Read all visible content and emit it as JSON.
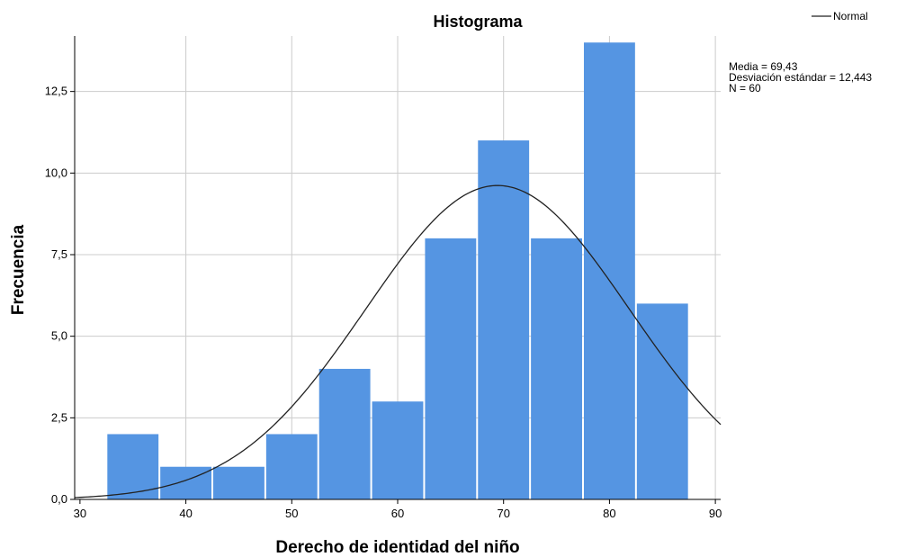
{
  "chart_data": {
    "type": "bar",
    "title": "Histograma",
    "xlabel": "Derecho de identidad del niño",
    "ylabel": "Frecuencia",
    "xlim": [
      29.5,
      90.5
    ],
    "ylim": [
      0,
      14.2
    ],
    "x_ticks": [
      30,
      40,
      50,
      60,
      70,
      80,
      90
    ],
    "x_tick_labels": [
      "30",
      "40",
      "50",
      "60",
      "70",
      "80",
      "90"
    ],
    "y_ticks": [
      0,
      2.5,
      5,
      7.5,
      10,
      12.5
    ],
    "y_tick_labels": [
      "0,0",
      "2,5",
      "5,0",
      "7,5",
      "10,0",
      "12,5"
    ],
    "bins": [
      {
        "start": 32.5,
        "end": 37.5,
        "value": 2
      },
      {
        "start": 37.5,
        "end": 42.5,
        "value": 1
      },
      {
        "start": 42.5,
        "end": 47.5,
        "value": 1
      },
      {
        "start": 47.5,
        "end": 52.5,
        "value": 2
      },
      {
        "start": 52.5,
        "end": 57.5,
        "value": 4
      },
      {
        "start": 57.5,
        "end": 62.5,
        "value": 3
      },
      {
        "start": 62.5,
        "end": 67.5,
        "value": 8
      },
      {
        "start": 67.5,
        "end": 72.5,
        "value": 11
      },
      {
        "start": 72.5,
        "end": 77.5,
        "value": 8
      },
      {
        "start": 77.5,
        "end": 82.5,
        "value": 14
      },
      {
        "start": 82.5,
        "end": 87.5,
        "value": 6
      }
    ],
    "bar_color": "#5595e2",
    "normal_curve": {
      "mean": 69.43,
      "sd": 12.443,
      "n": 60,
      "bin_width": 5,
      "color": "#222222"
    },
    "legend": {
      "entries": [
        "Normal"
      ],
      "placement": "top-right"
    },
    "stats": [
      "Media = 69,43",
      "Desviación estándar = 12,443",
      "N = 60"
    ],
    "grid": true
  }
}
